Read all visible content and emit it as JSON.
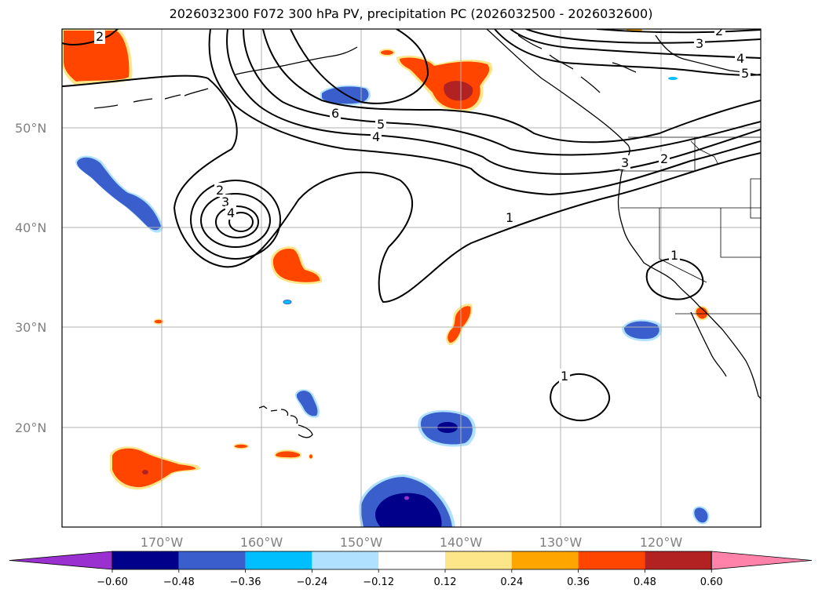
{
  "title": "2026032300 F072 300 hPa PV, precipitation PC (2026032500 - 2026032600)",
  "lat_labels": [
    "50°N",
    "40°N",
    "30°N",
    "20°N"
  ],
  "lon_labels": [
    "170°W",
    "160°W",
    "150°W",
    "140°W",
    "130°W",
    "120°W"
  ],
  "contour_labels": [
    "2",
    "2",
    "3",
    "4",
    "5",
    "6",
    "5",
    "4",
    "2",
    "3",
    "4",
    "1",
    "1",
    "2",
    "3",
    "1"
  ],
  "colorbar": {
    "ticks": [
      "−0.60",
      "−0.48",
      "−0.36",
      "−0.24",
      "−0.12",
      "0.12",
      "0.24",
      "0.36",
      "0.48",
      "0.60"
    ],
    "colors": [
      "#9b30d0",
      "#00008b",
      "#3a5fcd",
      "#00bfff",
      "#b0e2ff",
      "#ffffff",
      "#fde68a",
      "#ffa500",
      "#ff4500",
      "#b22222",
      "#ff82ab"
    ]
  }
}
